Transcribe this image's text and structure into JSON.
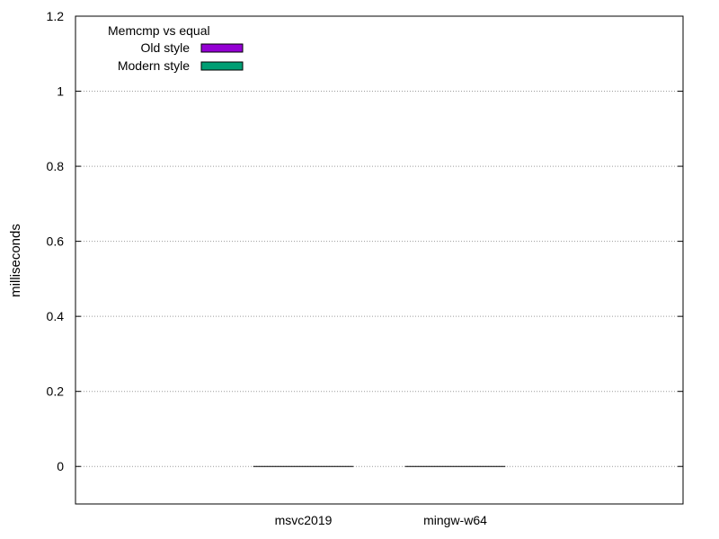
{
  "chart_data": {
    "type": "bar",
    "title": "",
    "xlabel": "",
    "ylabel": "milliseconds",
    "ylim": [
      -0.1,
      1.2
    ],
    "yticks": [
      0,
      0.2,
      0.4,
      0.6,
      0.8,
      1,
      1.2
    ],
    "ytick_labels": [
      "0",
      "0.2",
      "0.4",
      "0.6",
      "0.8",
      "1",
      "1.2"
    ],
    "grid": "horizontal dotted",
    "categories": [
      "msvc2019",
      "mingw-w64"
    ],
    "legend": {
      "title": "Memcmp vs equal",
      "placement": "top-left"
    },
    "series": [
      {
        "name": "Old style",
        "color": "#9400d3",
        "values": [
          0,
          0
        ]
      },
      {
        "name": "Modern style",
        "color": "#009e73",
        "values": [
          0,
          0
        ]
      }
    ]
  }
}
